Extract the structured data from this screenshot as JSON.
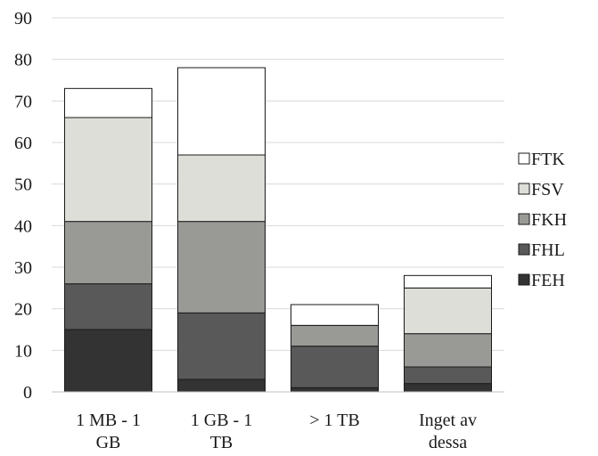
{
  "chart_data": {
    "type": "bar",
    "stacked": true,
    "title": "",
    "xlabel": "",
    "ylabel": "",
    "categories": [
      [
        "1 MB - 1",
        "GB"
      ],
      [
        "1 GB - 1",
        "TB"
      ],
      [
        "> 1 TB"
      ],
      [
        "Inget av",
        "dessa"
      ]
    ],
    "ylim": [
      0,
      90
    ],
    "yticks": [
      0,
      10,
      20,
      30,
      40,
      50,
      60,
      70,
      80,
      90
    ],
    "grid": true,
    "legend_position": "right",
    "series": [
      {
        "name": "FEH",
        "color": "#333333",
        "values": [
          15,
          3,
          1,
          2
        ]
      },
      {
        "name": "FHL",
        "color": "#595959",
        "values": [
          11,
          16,
          10,
          4
        ]
      },
      {
        "name": "FKH",
        "color": "#999996",
        "values": [
          15,
          22,
          5,
          8
        ]
      },
      {
        "name": "FSV",
        "color": "#deded8",
        "values": [
          25,
          16,
          0,
          11
        ]
      },
      {
        "name": "FTK",
        "color": "#ffffff",
        "values": [
          7,
          21,
          5,
          3
        ]
      }
    ]
  }
}
